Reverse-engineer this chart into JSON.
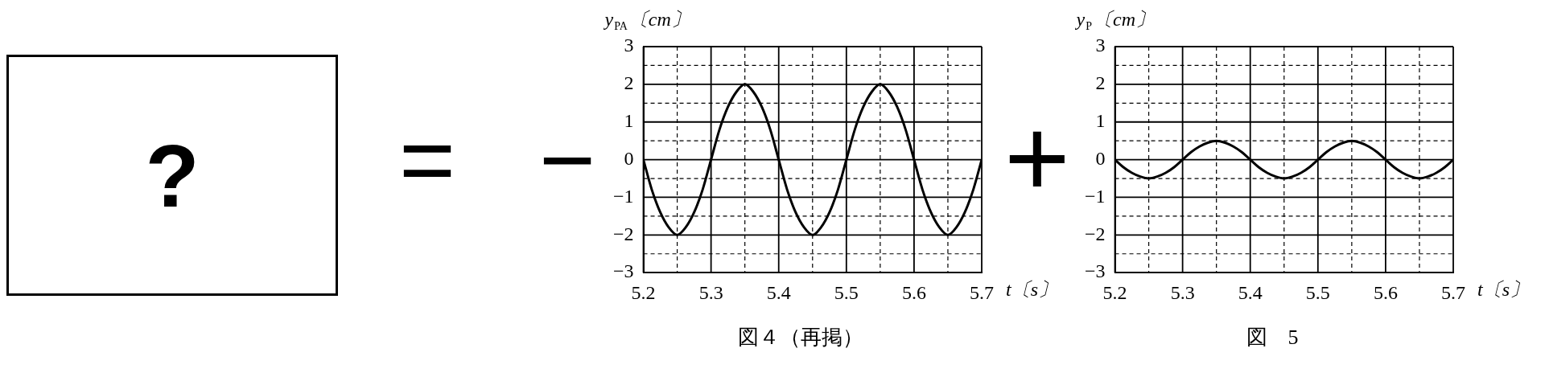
{
  "chart_data": [
    {
      "type": "other",
      "annotations": [
        "?",
        "=",
        "−",
        "+"
      ]
    },
    {
      "type": "line",
      "ylabel": "y$_{PA}$〔cm〕",
      "xlabel": "t〔s〕",
      "annotations": [
        "図４（再掲）"
      ],
      "grid": true,
      "xlim": [
        5.2,
        5.7
      ],
      "ylim": [
        -3,
        3
      ],
      "xticks": [
        5.2,
        {
          "value": 5.25,
          "label": null
        },
        5.3,
        {
          "value": 5.35,
          "label": null
        },
        5.4,
        {
          "value": 5.45,
          "label": null
        },
        5.5,
        {
          "value": 5.55,
          "label": null
        },
        5.6,
        {
          "value": 5.65,
          "label": null
        },
        5.7
      ],
      "yticks": [
        -3,
        {
          "value": -2.5,
          "label": null
        },
        -2,
        {
          "value": -1.5,
          "label": null
        },
        -1,
        {
          "value": -0.5,
          "label": null
        },
        0,
        {
          "value": 0.5,
          "label": null
        },
        1,
        {
          "value": 1.5,
          "label": null
        },
        2,
        {
          "value": 2.5,
          "label": null
        },
        3
      ],
      "x": [
        5.2,
        5.2125,
        5.225,
        5.2375,
        5.25,
        5.2625,
        5.275,
        5.2875,
        5.3,
        5.3125,
        5.325,
        5.3375,
        5.35,
        5.3625,
        5.375,
        5.3875,
        5.4,
        5.4125,
        5.425,
        5.4375,
        5.45,
        5.4625,
        5.475,
        5.4875,
        5.5,
        5.5125,
        5.525,
        5.5375,
        5.55,
        5.5625,
        5.575,
        5.5875,
        5.6,
        5.6125,
        5.625,
        5.6375,
        5.65,
        5.6625,
        5.675,
        5.6875,
        5.7
      ],
      "series": [
        {
          "color": "#000000",
          "values": [
            0,
            -0.8,
            -1.4,
            -1.8,
            -2,
            -1.8,
            -1.4,
            -0.8,
            0,
            0.8,
            1.4,
            1.8,
            2,
            1.8,
            1.4,
            0.8,
            0,
            -0.8,
            -1.4,
            -1.8,
            -2,
            -1.8,
            -1.4,
            -0.8,
            0,
            0.8,
            1.4,
            1.8,
            2,
            1.8,
            1.4,
            0.8,
            0,
            -0.8,
            -1.4,
            -1.8,
            -2,
            -1.8,
            -1.4,
            -0.8,
            0
          ]
        }
      ]
    },
    {
      "type": "line",
      "ylabel": "y$_{P}$〔cm〕",
      "xlabel": "t〔s〕",
      "annotations": [
        "図　5"
      ],
      "grid": true,
      "xlim": [
        5.2,
        5.7
      ],
      "ylim": [
        -3,
        3
      ],
      "xticks": [
        5.2,
        {
          "value": 5.25,
          "label": null
        },
        5.3,
        {
          "value": 5.35,
          "label": null
        },
        5.4,
        {
          "value": 5.45,
          "label": null
        },
        5.5,
        {
          "value": 5.55,
          "label": null
        },
        5.6,
        {
          "value": 5.65,
          "label": null
        },
        5.7
      ],
      "yticks": [
        -3,
        {
          "value": -2.5,
          "label": null
        },
        -2,
        {
          "value": -1.5,
          "label": null
        },
        -1,
        {
          "value": -0.5,
          "label": null
        },
        0,
        {
          "value": 0.5,
          "label": null
        },
        1,
        {
          "value": 1.5,
          "label": null
        },
        2,
        {
          "value": 2.5,
          "label": null
        },
        3
      ],
      "x": [
        5.2,
        5.2125,
        5.225,
        5.2375,
        5.25,
        5.2625,
        5.275,
        5.2875,
        5.3,
        5.3125,
        5.325,
        5.3375,
        5.35,
        5.3625,
        5.375,
        5.3875,
        5.4,
        5.4125,
        5.425,
        5.4375,
        5.45,
        5.4625,
        5.475,
        5.4875,
        5.5,
        5.5125,
        5.525,
        5.5375,
        5.55,
        5.5625,
        5.575,
        5.5875,
        5.6,
        5.6125,
        5.625,
        5.6375,
        5.65,
        5.6625,
        5.675,
        5.6875,
        5.7
      ],
      "series": [
        {
          "color": "#000000",
          "values": [
            0,
            -0.2,
            -0.35,
            -0.45,
            -0.5,
            -0.45,
            -0.35,
            -0.2,
            0,
            0.2,
            0.35,
            0.45,
            0.5,
            0.45,
            0.35,
            0.2,
            0,
            -0.2,
            -0.35,
            -0.45,
            -0.5,
            -0.45,
            -0.35,
            -0.2,
            0,
            0.2,
            0.35,
            0.45,
            0.5,
            0.45,
            0.35,
            0.2,
            0,
            -0.2,
            -0.35,
            -0.45,
            -0.5,
            -0.45,
            -0.35,
            -0.2,
            0
          ]
        }
      ]
    }
  ]
}
